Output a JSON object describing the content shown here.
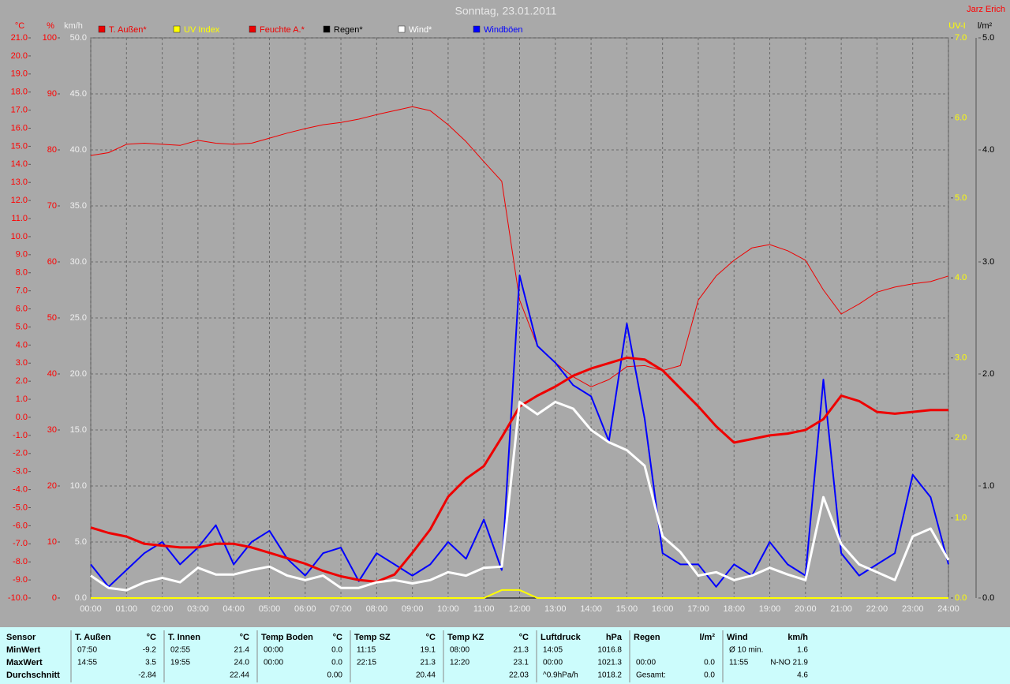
{
  "chart_data": {
    "type": "line",
    "title": "Sonntag, 23.01.2011",
    "author": "Jarz Erich",
    "grid": true,
    "x": [
      0,
      0.5,
      1,
      1.5,
      2,
      2.5,
      3,
      3.5,
      4,
      4.5,
      5,
      5.5,
      6,
      6.5,
      7,
      7.5,
      8,
      8.5,
      9,
      9.5,
      10,
      10.5,
      11,
      11.5,
      12,
      12.5,
      13,
      13.5,
      14,
      14.5,
      15,
      15.5,
      16,
      16.5,
      17,
      17.5,
      18,
      18.5,
      19,
      19.5,
      20,
      20.5,
      21,
      21.5,
      22,
      22.5,
      23,
      23.5,
      24
    ],
    "xlim": [
      0,
      24
    ],
    "xticks": [
      {
        "value": 0,
        "label": "00:00"
      },
      {
        "value": 1,
        "label": "01:00"
      },
      {
        "value": 2,
        "label": "02:00"
      },
      {
        "value": 3,
        "label": "03:00"
      },
      {
        "value": 4,
        "label": "04:00"
      },
      {
        "value": 5,
        "label": "05:00"
      },
      {
        "value": 6,
        "label": "06:00"
      },
      {
        "value": 7,
        "label": "07:00"
      },
      {
        "value": 8,
        "label": "08:00"
      },
      {
        "value": 9,
        "label": "09:00"
      },
      {
        "value": 10,
        "label": "10:00"
      },
      {
        "value": 11,
        "label": "11:00"
      },
      {
        "value": 12,
        "label": "12:00"
      },
      {
        "value": 13,
        "label": "13:00"
      },
      {
        "value": 14,
        "label": "14:00"
      },
      {
        "value": 15,
        "label": "15:00"
      },
      {
        "value": 16,
        "label": "16:00"
      },
      {
        "value": 17,
        "label": "17:00"
      },
      {
        "value": 18,
        "label": "18:00"
      },
      {
        "value": 19,
        "label": "19:00"
      },
      {
        "value": 20,
        "label": "20:00"
      },
      {
        "value": 21,
        "label": "21:00"
      },
      {
        "value": 22,
        "label": "22:00"
      },
      {
        "value": 23,
        "label": "23:00"
      },
      {
        "value": 24,
        "label": "24:00"
      }
    ],
    "axes": [
      {
        "label": "°C",
        "color": "#ff0000",
        "lim": [
          -10,
          21
        ],
        "ticks": [
          {
            "value": 21,
            "label": "21.0"
          },
          {
            "value": 20,
            "label": "20.0"
          },
          {
            "value": 19,
            "label": "19.0"
          },
          {
            "value": 18,
            "label": "18.0"
          },
          {
            "value": 17,
            "label": "17.0"
          },
          {
            "value": 16,
            "label": "16.0"
          },
          {
            "value": 15,
            "label": "15.0"
          },
          {
            "value": 14,
            "label": "14.0"
          },
          {
            "value": 13,
            "label": "13.0"
          },
          {
            "value": 12,
            "label": "12.0"
          },
          {
            "value": 11,
            "label": "11.0"
          },
          {
            "value": 10,
            "label": "10.0"
          },
          {
            "value": 9,
            "label": "9.0"
          },
          {
            "value": 8,
            "label": "8.0"
          },
          {
            "value": 7,
            "label": "7.0"
          },
          {
            "value": 6,
            "label": "6.0"
          },
          {
            "value": 5,
            "label": "5.0"
          },
          {
            "value": 4,
            "label": "4.0"
          },
          {
            "value": 3,
            "label": "3.0"
          },
          {
            "value": 2,
            "label": "2.0"
          },
          {
            "value": 1,
            "label": "1.0"
          },
          {
            "value": 0,
            "label": "0.0"
          },
          {
            "value": -1,
            "label": "-1.0"
          },
          {
            "value": -2,
            "label": "-2.0"
          },
          {
            "value": -3,
            "label": "-3.0"
          },
          {
            "value": -4,
            "label": "-4.0"
          },
          {
            "value": -5,
            "label": "-5.0"
          },
          {
            "value": -6,
            "label": "-6.0"
          },
          {
            "value": -7,
            "label": "-7.0"
          },
          {
            "value": -8,
            "label": "-8.0"
          },
          {
            "value": -9,
            "label": "-9.0"
          },
          {
            "value": -10,
            "label": "-10.0"
          }
        ]
      },
      {
        "label": "%",
        "color": "#ff0000",
        "lim": [
          0,
          100
        ],
        "ticks": [
          100,
          90,
          80,
          70,
          60,
          50,
          40,
          30,
          20,
          10,
          0
        ]
      },
      {
        "label": "km/h",
        "color": "#f0f0f0",
        "lim": [
          0,
          50
        ],
        "grid": true,
        "ticks": [
          {
            "value": 50,
            "label": "50.0"
          },
          {
            "value": 45,
            "label": "45.0"
          },
          {
            "value": 40,
            "label": "40.0"
          },
          {
            "value": 35,
            "label": "35.0"
          },
          {
            "value": 30,
            "label": "30.0"
          },
          {
            "value": 25,
            "label": "25.0"
          },
          {
            "value": 20,
            "label": "20.0"
          },
          {
            "value": 15,
            "label": "15.0"
          },
          {
            "value": 10,
            "label": "10.0"
          },
          {
            "value": 5,
            "label": "5.0"
          },
          {
            "value": 0,
            "label": "0.0"
          }
        ]
      },
      {
        "label": "UV-I",
        "color": "#ffff00",
        "lim": [
          0,
          7
        ],
        "ticks": [
          {
            "value": 7,
            "label": "7.0"
          },
          {
            "value": 6,
            "label": "6.0"
          },
          {
            "value": 5,
            "label": "5.0"
          },
          {
            "value": 4,
            "label": "4.0"
          },
          {
            "value": 3,
            "label": "3.0"
          },
          {
            "value": 2,
            "label": "2.0"
          },
          {
            "value": 1,
            "label": "1.0"
          },
          {
            "value": 0,
            "label": "0.0"
          }
        ]
      },
      {
        "label": "l/m²",
        "color": "#000000",
        "lim": [
          0,
          5
        ],
        "ticks": [
          {
            "value": 5,
            "label": "5.0"
          },
          {
            "value": 4,
            "label": "4.0"
          },
          {
            "value": 3,
            "label": "3.0"
          },
          {
            "value": 2,
            "label": "2.0"
          },
          {
            "value": 1,
            "label": "1.0"
          },
          {
            "value": 0,
            "label": "0.0"
          }
        ]
      }
    ],
    "series": [
      {
        "name": "T. Außen*",
        "color": "#ee0000",
        "axis": 0,
        "values": [
          -6.1,
          -6.4,
          -6.6,
          -7.0,
          -7.1,
          -7.2,
          -7.2,
          -7.0,
          -7.0,
          -7.2,
          -7.5,
          -7.8,
          -8.1,
          -8.5,
          -8.8,
          -9.0,
          -9.1,
          -8.7,
          -7.5,
          -6.2,
          -4.4,
          -3.4,
          -2.7,
          -1.1,
          0.6,
          1.2,
          1.7,
          2.3,
          2.7,
          3.0,
          3.3,
          3.2,
          2.6,
          1.6,
          0.6,
          -0.5,
          -1.4,
          -1.2,
          -1.0,
          -0.9,
          -0.7,
          -0.1,
          1.2,
          0.9,
          0.3,
          0.2,
          0.3,
          0.4,
          0.4
        ]
      },
      {
        "name": "UV Index",
        "color": "#ffff00",
        "axis": 3,
        "values": [
          0,
          0,
          0,
          0,
          0,
          0,
          0,
          0,
          0,
          0,
          0,
          0,
          0,
          0,
          0,
          0,
          0,
          0,
          0,
          0,
          0,
          0,
          0,
          0.1,
          0.1,
          0,
          0,
          0,
          0,
          0,
          0,
          0,
          0,
          0,
          0,
          0,
          0,
          0,
          0,
          0,
          0,
          0,
          0,
          0,
          0,
          0,
          0,
          0,
          0
        ]
      },
      {
        "name": "Feuchte A.*",
        "color": "#ee0000",
        "axis": 1,
        "values": [
          79.0,
          79.5,
          81.0,
          81.2,
          81.0,
          80.8,
          81.7,
          81.2,
          81.0,
          81.2,
          82.1,
          83.0,
          83.8,
          84.5,
          84.9,
          85.5,
          86.3,
          87.0,
          87.7,
          87.0,
          84.5,
          81.5,
          77.9,
          74.4,
          53.2,
          45.0,
          42.0,
          39.5,
          37.7,
          39.0,
          41.3,
          41.5,
          40.6,
          41.5,
          53.2,
          57.5,
          60.3,
          62.5,
          63.1,
          62.0,
          60.3,
          55.0,
          50.7,
          52.5,
          54.6,
          55.5,
          56.1,
          56.5,
          57.5
        ]
      },
      {
        "name": "Regen*",
        "color": "#000000",
        "axis": 4,
        "values": [
          0,
          0,
          0,
          0,
          0,
          0,
          0,
          0,
          0,
          0,
          0,
          0,
          0,
          0,
          0,
          0,
          0,
          0,
          0,
          0,
          0,
          0,
          0,
          0,
          0,
          0,
          0,
          0,
          0,
          0,
          0,
          0,
          0,
          0,
          0,
          0,
          0,
          0,
          0,
          0,
          0,
          0,
          0,
          0,
          0,
          0,
          0,
          0,
          0
        ]
      },
      {
        "name": "Wind*",
        "color": "#ffffff",
        "axis": 2,
        "values": [
          2.0,
          0.9,
          0.7,
          1.4,
          1.8,
          1.4,
          2.7,
          2.1,
          2.1,
          2.5,
          2.8,
          2.0,
          1.6,
          2.0,
          0.9,
          0.9,
          1.4,
          1.6,
          1.3,
          1.6,
          2.3,
          2.0,
          2.7,
          2.8,
          17.5,
          16.4,
          17.5,
          16.9,
          15.0,
          13.9,
          13.2,
          11.8,
          5.5,
          4.1,
          2.0,
          2.3,
          1.6,
          2.0,
          2.7,
          2.1,
          1.6,
          9.0,
          4.8,
          3.0,
          2.3,
          1.6,
          5.5,
          6.2,
          3.4
        ]
      },
      {
        "name": "Windböen",
        "color": "#0000ff",
        "axis": 2,
        "values": [
          3.0,
          1.0,
          2.5,
          4.0,
          5.0,
          3.0,
          4.5,
          6.5,
          3.0,
          5.0,
          6.0,
          3.5,
          2.0,
          4.0,
          4.5,
          1.5,
          4.0,
          3.0,
          2.0,
          3.0,
          5.0,
          3.5,
          7.0,
          2.5,
          28.8,
          22.5,
          21.0,
          19.0,
          18.0,
          14.0,
          24.5,
          16.0,
          4.0,
          3.0,
          3.0,
          1.0,
          3.0,
          2.0,
          5.0,
          3.0,
          2.0,
          19.5,
          4.0,
          2.0,
          3.0,
          4.0,
          11.0,
          9.0,
          3.0
        ]
      }
    ]
  },
  "table": {
    "sensor_header": "Sensor",
    "row_labels": [
      "MinWert",
      "MaxWert",
      "Durchschnitt"
    ],
    "columns": [
      {
        "name": "T. Außen",
        "unit": "°C",
        "rows": [
          [
            "07:50",
            "-9.2"
          ],
          [
            "14:55",
            "3.5"
          ],
          [
            "",
            "-2.84"
          ]
        ]
      },
      {
        "name": "T. Innen",
        "unit": "°C",
        "rows": [
          [
            "02:55",
            "21.4"
          ],
          [
            "19:55",
            "24.0"
          ],
          [
            "",
            "22.44"
          ]
        ]
      },
      {
        "name": "Temp Boden",
        "unit": "°C",
        "rows": [
          [
            "00:00",
            "0.0"
          ],
          [
            "00:00",
            "0.0"
          ],
          [
            "",
            "0.00"
          ]
        ]
      },
      {
        "name": "Temp SZ",
        "unit": "°C",
        "rows": [
          [
            "11:15",
            "19.1"
          ],
          [
            "22:15",
            "21.3"
          ],
          [
            "",
            "20.44"
          ]
        ]
      },
      {
        "name": "Temp KZ",
        "unit": "°C",
        "rows": [
          [
            "08:00",
            "21.3"
          ],
          [
            "12:20",
            "23.1"
          ],
          [
            "",
            "22.03"
          ]
        ]
      },
      {
        "name": "Luftdruck",
        "unit": "hPa",
        "rows": [
          [
            "14:05",
            "1016.8"
          ],
          [
            "00:00",
            "1021.3"
          ],
          [
            "^0.9hPa/h",
            "1018.2"
          ]
        ]
      },
      {
        "name": "Regen",
        "unit": "l/m²",
        "rows": [
          [
            "",
            ""
          ],
          [
            "00:00",
            "0.0"
          ],
          [
            "Gesamt:",
            "0.0"
          ]
        ]
      },
      {
        "name": "Wind",
        "unit": "km/h",
        "rows": [
          [
            "Ø 10 min.",
            "1.6"
          ],
          [
            "11:55",
            "N-NO 21.9"
          ],
          [
            "",
            "4.6"
          ]
        ]
      }
    ]
  }
}
